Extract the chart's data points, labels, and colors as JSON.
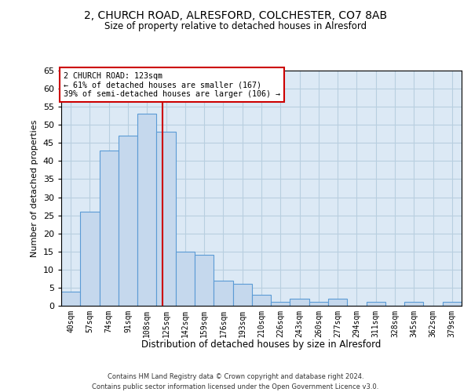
{
  "title_line1": "2, CHURCH ROAD, ALRESFORD, COLCHESTER, CO7 8AB",
  "title_line2": "Size of property relative to detached houses in Alresford",
  "xlabel": "Distribution of detached houses by size in Alresford",
  "ylabel": "Number of detached properties",
  "categories": [
    "40sqm",
    "57sqm",
    "74sqm",
    "91sqm",
    "108sqm",
    "125sqm",
    "142sqm",
    "159sqm",
    "176sqm",
    "193sqm",
    "210sqm",
    "226sqm",
    "243sqm",
    "260sqm",
    "277sqm",
    "294sqm",
    "311sqm",
    "328sqm",
    "345sqm",
    "362sqm",
    "379sqm"
  ],
  "values": [
    4,
    26,
    43,
    47,
    53,
    48,
    15,
    14,
    7,
    6,
    3,
    1,
    2,
    1,
    2,
    0,
    1,
    0,
    1,
    0,
    1
  ],
  "bar_color": "#c5d8ed",
  "bar_edge_color": "#5b9bd5",
  "annotation_line1": "2 CHURCH ROAD: 123sqm",
  "annotation_line2": "← 61% of detached houses are smaller (167)",
  "annotation_line3": "39% of semi-detached houses are larger (106) →",
  "annotation_box_color": "#ffffff",
  "annotation_box_edge_color": "#cc0000",
  "vline_color": "#cc0000",
  "vline_x_index": 4.82,
  "ylim": [
    0,
    65
  ],
  "yticks": [
    0,
    5,
    10,
    15,
    20,
    25,
    30,
    35,
    40,
    45,
    50,
    55,
    60,
    65
  ],
  "background_color": "#ffffff",
  "plot_bg_color": "#dce9f5",
  "grid_color": "#b8cfe0",
  "footer_line1": "Contains HM Land Registry data © Crown copyright and database right 2024.",
  "footer_line2": "Contains public sector information licensed under the Open Government Licence v3.0."
}
